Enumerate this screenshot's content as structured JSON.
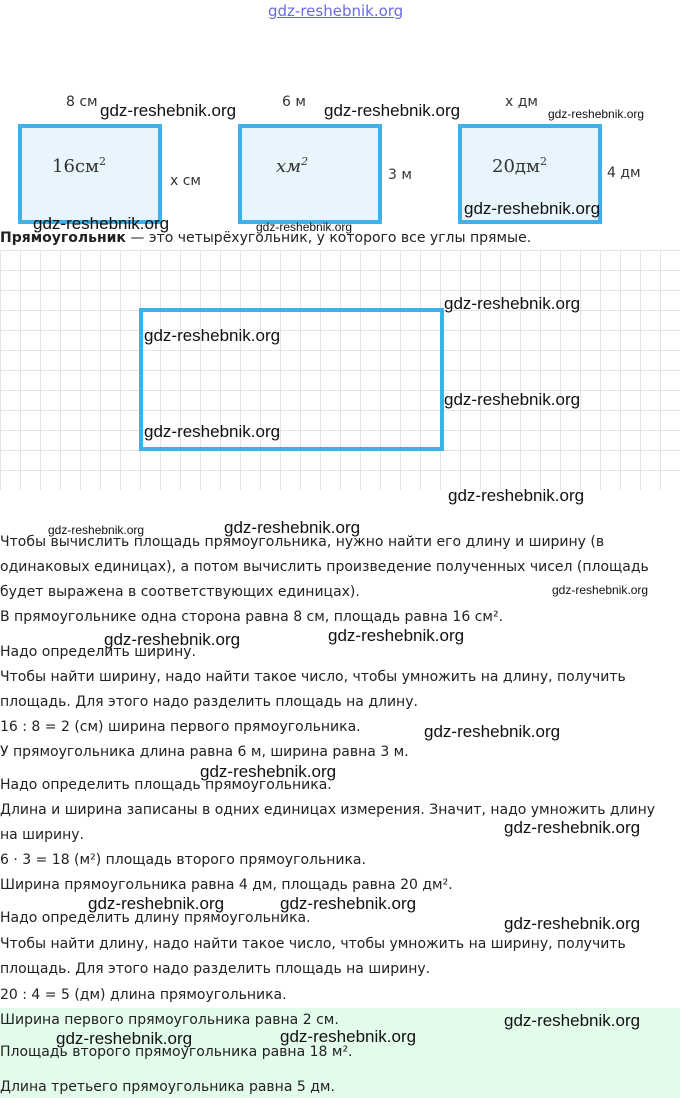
{
  "site_link": "gdz-reshebnik.org",
  "watermark": "gdz-reshebnik.org",
  "figures": [
    {
      "top": "8 см",
      "side": "х см",
      "area": "16см",
      "sup": "2"
    },
    {
      "top": "6 м",
      "side": "3 м",
      "area": "xм",
      "sup": "2"
    },
    {
      "top": "х дм",
      "side": "4 дм",
      "area": "20дм",
      "sup": "2"
    }
  ],
  "definition": {
    "term": "Прямоугольник",
    "rest": " — это четырёхугольник, у которого все углы прямые."
  },
  "lines": [
    "Чтобы вычислить площадь прямоугольника, нужно найти его длину и ширину (в",
    "одинаковых единицах), а потом вычислить произведение полученных чисел (площадь",
    "будет выражена в соответствующих единицах).",
    "В прямоугольнике одна сторона равна 8 см, площадь равна 16 см².",
    "Надо определить ширину.",
    "Чтобы найти ширину, надо найти такое число, чтобы умножить на длину, получить",
    "площадь. Для этого надо разделить площадь на длину.",
    "16 : 8 = 2 (см) ширина первого прямоугольника.",
    "У прямоугольника длина равна 6 м, ширина равна 3 м.",
    "Надо определить площадь прямоугольника.",
    "Длина и ширина записаны в одних единицах измерения. Значит, надо умножить длину",
    "на ширину.",
    "6 · 3 = 18 (м²) площадь второго прямоугольника.",
    "Ширина прямоугольника равна 4 дм, площадь равна 20 дм².",
    "Надо определить длину прямоугольника.",
    "Чтобы найти длину, надо найти такое число, чтобы умножить на ширину, получить",
    "площадь. Для этого надо разделить площадь на ширину.",
    "20 : 4 = 5 (дм) длина прямоугольника."
  ],
  "answers": [
    "Ширина первого прямоугольника равна 2 см.",
    "Площадь второго прямоугольника равна 18 м².",
    "Длина третьего прямоугольника равна 5 дм."
  ],
  "colors": {
    "rect_border": "#3db2ea",
    "rect_fill": "#e8f5fd",
    "answer_bg": "#e3fbeb"
  }
}
